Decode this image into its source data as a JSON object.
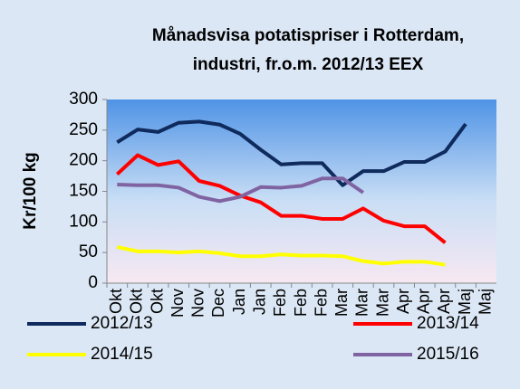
{
  "chart_data": {
    "type": "line",
    "title": [
      "Månadsvisa potatispriser i Rotterdam,",
      "industri, fr.o.m. 2012/13 EEX"
    ],
    "y_label": "Kr/100 kg",
    "categories": [
      "Okt",
      "Okt",
      "Okt",
      "Nov",
      "Nov",
      "Dec",
      "Jan",
      "Jan",
      "Feb",
      "Feb",
      "Feb",
      "Mar",
      "Mar",
      "Mar",
      "Apr",
      "Apr",
      "Apr",
      "Maj",
      "Maj"
    ],
    "series": [
      {
        "name": "2012/13",
        "color": "#0f2a5c",
        "values": [
          230,
          251,
          247,
          262,
          264,
          259,
          244,
          218,
          194,
          196,
          196,
          160,
          183,
          183,
          198,
          198,
          215,
          260,
          null
        ]
      },
      {
        "name": "2013/14",
        "color": "#ff0000",
        "values": [
          178,
          209,
          193,
          199,
          167,
          159,
          143,
          132,
          110,
          110,
          105,
          105,
          122,
          102,
          93,
          93,
          66,
          null,
          null
        ]
      },
      {
        "name": "2014/15",
        "color": "#ffff00",
        "values": [
          59,
          52,
          52,
          50,
          52,
          49,
          44,
          44,
          47,
          45,
          45,
          44,
          36,
          32,
          35,
          35,
          30,
          null,
          null
        ]
      },
      {
        "name": "2015/16",
        "color": "#8064a2",
        "values": [
          161,
          160,
          160,
          156,
          141,
          134,
          141,
          157,
          156,
          159,
          171,
          171,
          148,
          null,
          null,
          null,
          null,
          null,
          null
        ]
      }
    ],
    "ylim": [
      0,
      300
    ],
    "yticks": [
      0,
      50,
      100,
      150,
      200,
      250,
      300
    ]
  }
}
